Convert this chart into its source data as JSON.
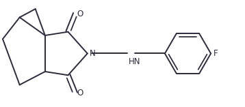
{
  "bg_color": "#ffffff",
  "line_color": "#2b2b3b",
  "line_width": 1.4,
  "text_color": "#2b2b3b",
  "font_size": 8.5,
  "figsize": [
    3.58,
    1.57
  ],
  "dpi": 100,
  "xlim": [
    0,
    10
  ],
  "ylim": [
    0,
    4.4
  ]
}
